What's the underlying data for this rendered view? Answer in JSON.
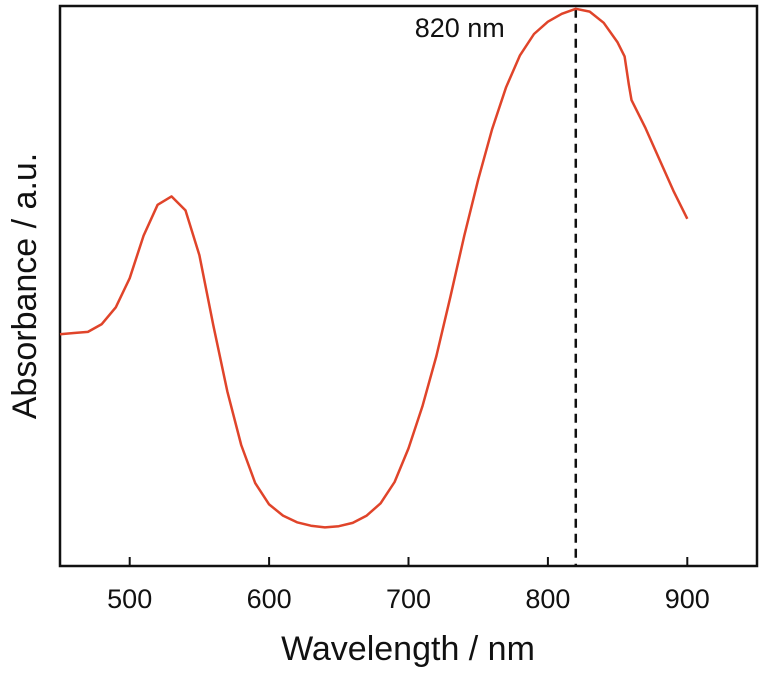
{
  "chart_data": {
    "type": "line",
    "title": "",
    "xlabel": "Wavelength / nm",
    "ylabel": "Absorbance / a.u.",
    "xlim": [
      450,
      950
    ],
    "ylim": [
      0,
      1
    ],
    "x_ticks": [
      500,
      600,
      700,
      800,
      900
    ],
    "y_ticks": [],
    "grid": false,
    "legend": "none",
    "colors": {
      "series": "#e0442a",
      "axes": "#111111"
    },
    "series": [
      {
        "points": [
          [
            450,
            0.414
          ],
          [
            460,
            0.416
          ],
          [
            470,
            0.418
          ],
          [
            480,
            0.432
          ],
          [
            490,
            0.462
          ],
          [
            500,
            0.514
          ],
          [
            510,
            0.59
          ],
          [
            520,
            0.645
          ],
          [
            530,
            0.66
          ],
          [
            540,
            0.635
          ],
          [
            550,
            0.555
          ],
          [
            560,
            0.43
          ],
          [
            570,
            0.312
          ],
          [
            580,
            0.216
          ],
          [
            590,
            0.148
          ],
          [
            600,
            0.11
          ],
          [
            610,
            0.09
          ],
          [
            620,
            0.078
          ],
          [
            630,
            0.072
          ],
          [
            640,
            0.069
          ],
          [
            650,
            0.071
          ],
          [
            660,
            0.077
          ],
          [
            670,
            0.09
          ],
          [
            680,
            0.112
          ],
          [
            690,
            0.15
          ],
          [
            700,
            0.21
          ],
          [
            710,
            0.285
          ],
          [
            720,
            0.375
          ],
          [
            730,
            0.48
          ],
          [
            740,
            0.59
          ],
          [
            750,
            0.69
          ],
          [
            760,
            0.78
          ],
          [
            770,
            0.855
          ],
          [
            780,
            0.912
          ],
          [
            790,
            0.95
          ],
          [
            800,
            0.972
          ],
          [
            810,
            0.986
          ],
          [
            820,
            0.995
          ],
          [
            830,
            0.99
          ],
          [
            840,
            0.97
          ],
          [
            850,
            0.935
          ],
          [
            855,
            0.91
          ],
          [
            858,
            0.86
          ],
          [
            860,
            0.832
          ],
          [
            870,
            0.782
          ],
          [
            880,
            0.726
          ],
          [
            890,
            0.67
          ],
          [
            900,
            0.62
          ]
        ]
      }
    ],
    "annotations": [
      {
        "text": "820 nm",
        "x": 820,
        "line": "dashed-vertical"
      }
    ]
  }
}
